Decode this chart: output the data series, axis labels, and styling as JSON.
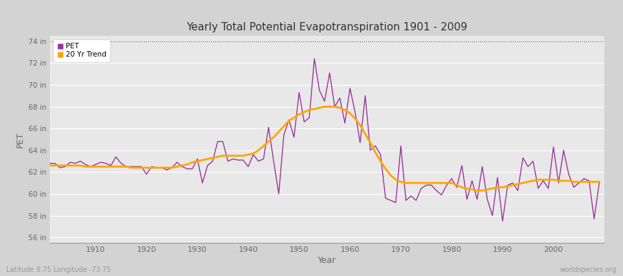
{
  "title": "Yearly Total Potential Evapotranspiration 1901 - 2009",
  "xlabel": "Year",
  "ylabel": "PET",
  "subtitle_left": "Latitude 8.75 Longitude -73.75",
  "subtitle_right": "worldspecies.org",
  "ylim": [
    55.5,
    74.5
  ],
  "yticks": [
    56,
    58,
    60,
    62,
    64,
    66,
    68,
    70,
    72,
    74
  ],
  "ytick_labels": [
    "56 in",
    "58 in",
    "60 in",
    "62 in",
    "64 in",
    "66 in",
    "68 in",
    "70 in",
    "72 in",
    "74 in"
  ],
  "years": [
    1901,
    1902,
    1903,
    1904,
    1905,
    1906,
    1907,
    1908,
    1909,
    1910,
    1911,
    1912,
    1913,
    1914,
    1915,
    1916,
    1917,
    1918,
    1919,
    1920,
    1921,
    1922,
    1923,
    1924,
    1925,
    1926,
    1927,
    1928,
    1929,
    1930,
    1931,
    1932,
    1933,
    1934,
    1935,
    1936,
    1937,
    1938,
    1939,
    1940,
    1941,
    1942,
    1943,
    1944,
    1945,
    1946,
    1947,
    1948,
    1949,
    1950,
    1951,
    1952,
    1953,
    1954,
    1955,
    1956,
    1957,
    1958,
    1959,
    1960,
    1961,
    1962,
    1963,
    1964,
    1965,
    1966,
    1967,
    1968,
    1969,
    1970,
    1971,
    1972,
    1973,
    1974,
    1975,
    1976,
    1977,
    1978,
    1979,
    1980,
    1981,
    1982,
    1983,
    1984,
    1985,
    1986,
    1987,
    1988,
    1989,
    1990,
    1991,
    1992,
    1993,
    1994,
    1995,
    1996,
    1997,
    1998,
    1999,
    2000,
    2001,
    2002,
    2003,
    2004,
    2005,
    2006,
    2007,
    2008,
    2009
  ],
  "pet": [
    62.8,
    62.8,
    62.4,
    62.5,
    62.9,
    62.8,
    63.0,
    62.7,
    62.5,
    62.7,
    62.9,
    62.8,
    62.6,
    63.4,
    62.8,
    62.5,
    62.5,
    62.5,
    62.5,
    61.8,
    62.5,
    62.4,
    62.4,
    62.2,
    62.4,
    62.9,
    62.5,
    62.3,
    62.3,
    63.2,
    61.0,
    62.6,
    63.0,
    64.8,
    64.8,
    63.0,
    63.2,
    63.1,
    63.1,
    62.5,
    63.6,
    63.0,
    63.2,
    66.1,
    63.0,
    60.0,
    65.4,
    66.8,
    65.2,
    69.3,
    66.6,
    67.0,
    72.4,
    69.5,
    68.5,
    71.1,
    68.0,
    68.8,
    66.5,
    69.7,
    67.5,
    64.7,
    69.0,
    64.0,
    64.4,
    63.6,
    59.6,
    59.4,
    59.2,
    64.4,
    59.4,
    59.8,
    59.4,
    60.5,
    60.8,
    60.8,
    60.3,
    59.9,
    60.8,
    61.4,
    60.6,
    62.6,
    59.5,
    61.2,
    59.5,
    62.5,
    59.5,
    58.0,
    61.5,
    57.5,
    60.8,
    61.0,
    60.3,
    63.3,
    62.5,
    63.0,
    60.5,
    61.2,
    60.5,
    64.3,
    61.0,
    64.0,
    61.8,
    60.6,
    61.0,
    61.4,
    61.2,
    57.7,
    61.0
  ],
  "trend": [
    62.6,
    62.6,
    62.6,
    62.6,
    62.6,
    62.6,
    62.6,
    62.5,
    62.5,
    62.5,
    62.5,
    62.5,
    62.5,
    62.5,
    62.5,
    62.5,
    62.4,
    62.4,
    62.4,
    62.4,
    62.4,
    62.4,
    62.4,
    62.4,
    62.4,
    62.5,
    62.6,
    62.7,
    62.9,
    63.0,
    63.1,
    63.2,
    63.3,
    63.4,
    63.5,
    63.5,
    63.5,
    63.5,
    63.5,
    63.6,
    63.7,
    64.0,
    64.4,
    64.8,
    65.2,
    65.7,
    66.2,
    66.7,
    67.0,
    67.3,
    67.5,
    67.7,
    67.8,
    67.9,
    68.0,
    68.0,
    68.0,
    67.9,
    67.7,
    67.4,
    66.9,
    66.3,
    65.5,
    64.7,
    63.8,
    63.0,
    62.3,
    61.7,
    61.3,
    61.1,
    61.0,
    61.0,
    61.0,
    61.0,
    61.0,
    61.0,
    61.0,
    61.0,
    61.0,
    61.0,
    60.8,
    60.6,
    60.5,
    60.4,
    60.3,
    60.3,
    60.4,
    60.5,
    60.6,
    60.6,
    60.7,
    60.8,
    60.9,
    61.0,
    61.1,
    61.2,
    61.3,
    61.3,
    61.3,
    61.3,
    61.2,
    61.2,
    61.2,
    61.1,
    61.1,
    61.1,
    61.1,
    61.1,
    61.1
  ],
  "pet_color": "#993399",
  "trend_color": "#FFA500",
  "bg_color": "#D3D3D3",
  "plot_bg_color": "#E8E8E8",
  "grid_color": "#FFFFFF",
  "title_color": "#333333",
  "tick_color": "#666666",
  "top_dotted_line_y": 74,
  "xticks": [
    1910,
    1920,
    1930,
    1940,
    1950,
    1960,
    1970,
    1980,
    1990,
    2000
  ]
}
